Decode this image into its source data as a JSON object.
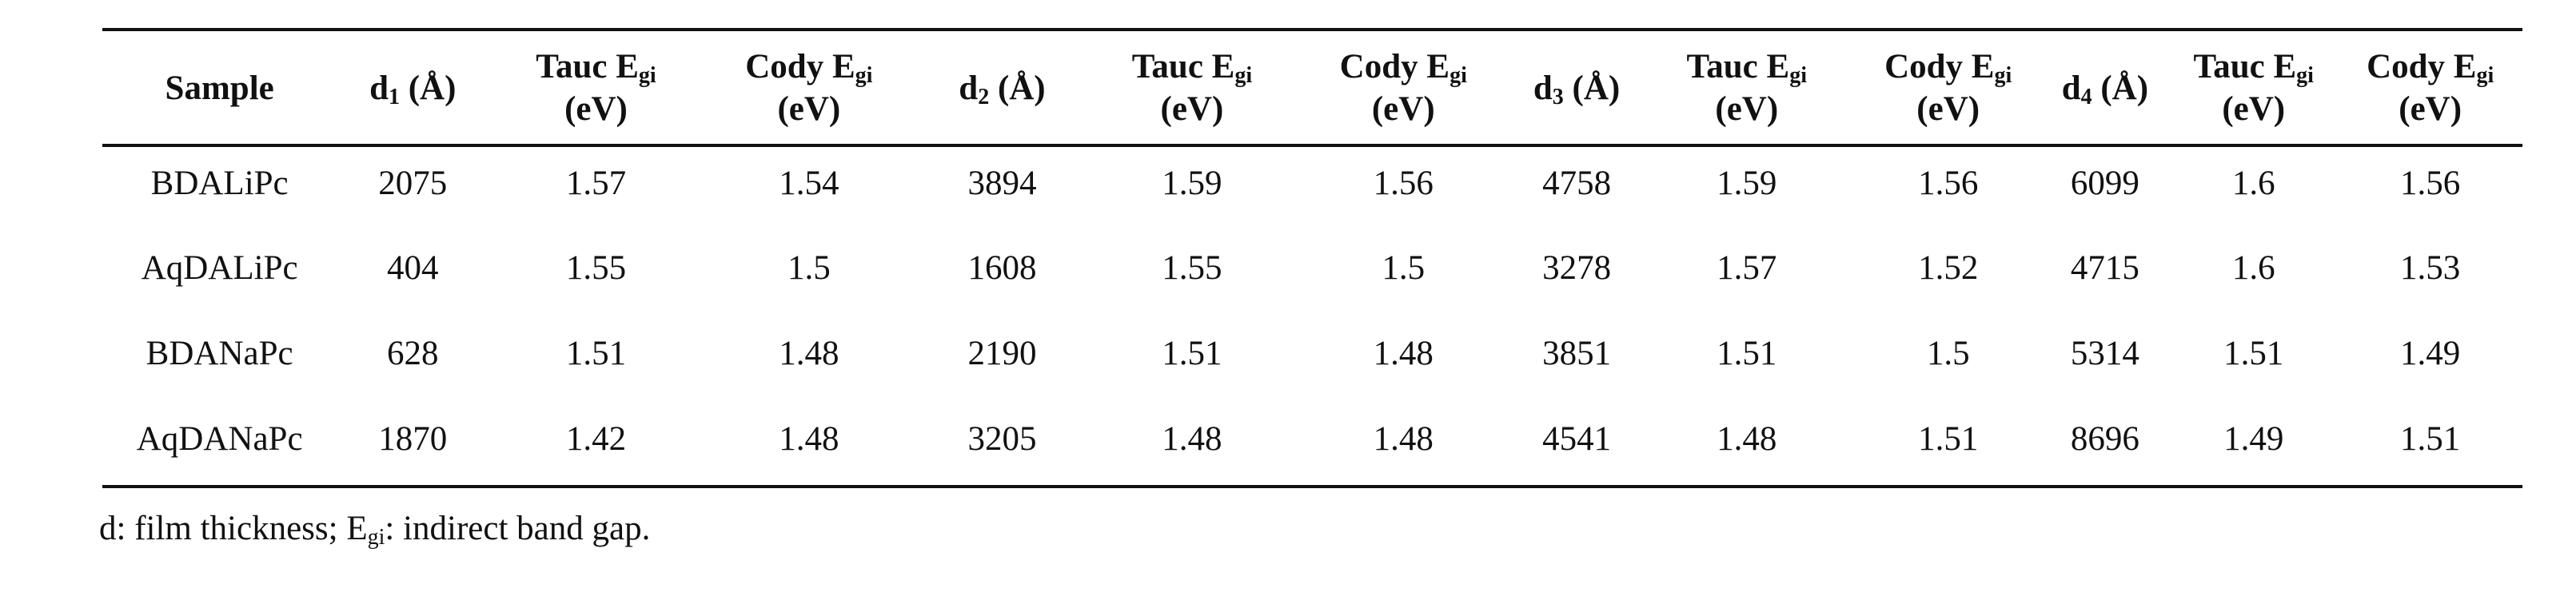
{
  "table": {
    "header": [
      {
        "text": "Sample"
      },
      {
        "text": "d",
        "sub": "1",
        "tail": " (Å)"
      },
      {
        "text": "Tauc E",
        "sub": "gi",
        "line2": "(eV)"
      },
      {
        "text": "Cody E",
        "sub": "gi",
        "line2": "(eV)"
      },
      {
        "text": "d",
        "sub": "2",
        "tail": " (Å)"
      },
      {
        "text": "Tauc E",
        "sub": "gi",
        "line2": "(eV)"
      },
      {
        "text": "Cody E",
        "sub": "gi",
        "line2": "(eV)"
      },
      {
        "text": "d",
        "sub": "3",
        "tail": " (Å)"
      },
      {
        "text": "Tauc E",
        "sub": "gi",
        "line2": "(eV)"
      },
      {
        "text": "Cody E",
        "sub": "gi",
        "line2": "(eV)"
      },
      {
        "text": "d",
        "sub": "4",
        "tail": " (Å)"
      },
      {
        "text": "Tauc E",
        "sub": "gi",
        "line2": "(eV)"
      },
      {
        "text": "Cody E",
        "sub": "gi",
        "line2": "(eV)"
      }
    ],
    "rows": [
      [
        "BDALiPc",
        "2075",
        "1.57",
        "1.54",
        "3894",
        "1.59",
        "1.56",
        "4758",
        "1.59",
        "1.56",
        "6099",
        "1.6",
        "1.56"
      ],
      [
        "AqDALiPc",
        "404",
        "1.55",
        "1.5",
        "1608",
        "1.55",
        "1.5",
        "3278",
        "1.57",
        "1.52",
        "4715",
        "1.6",
        "1.53"
      ],
      [
        "BDANaPc",
        "628",
        "1.51",
        "1.48",
        "2190",
        "1.51",
        "1.48",
        "3851",
        "1.51",
        "1.5",
        "5314",
        "1.51",
        "1.49"
      ],
      [
        "AqDANaPc",
        "1870",
        "1.42",
        "1.48",
        "3205",
        "1.48",
        "1.48",
        "4541",
        "1.48",
        "1.51",
        "8696",
        "1.49",
        "1.51"
      ]
    ]
  },
  "footnote": {
    "text": "d: film thickness; E",
    "sub": "gi",
    "tail": ": indirect band gap."
  }
}
